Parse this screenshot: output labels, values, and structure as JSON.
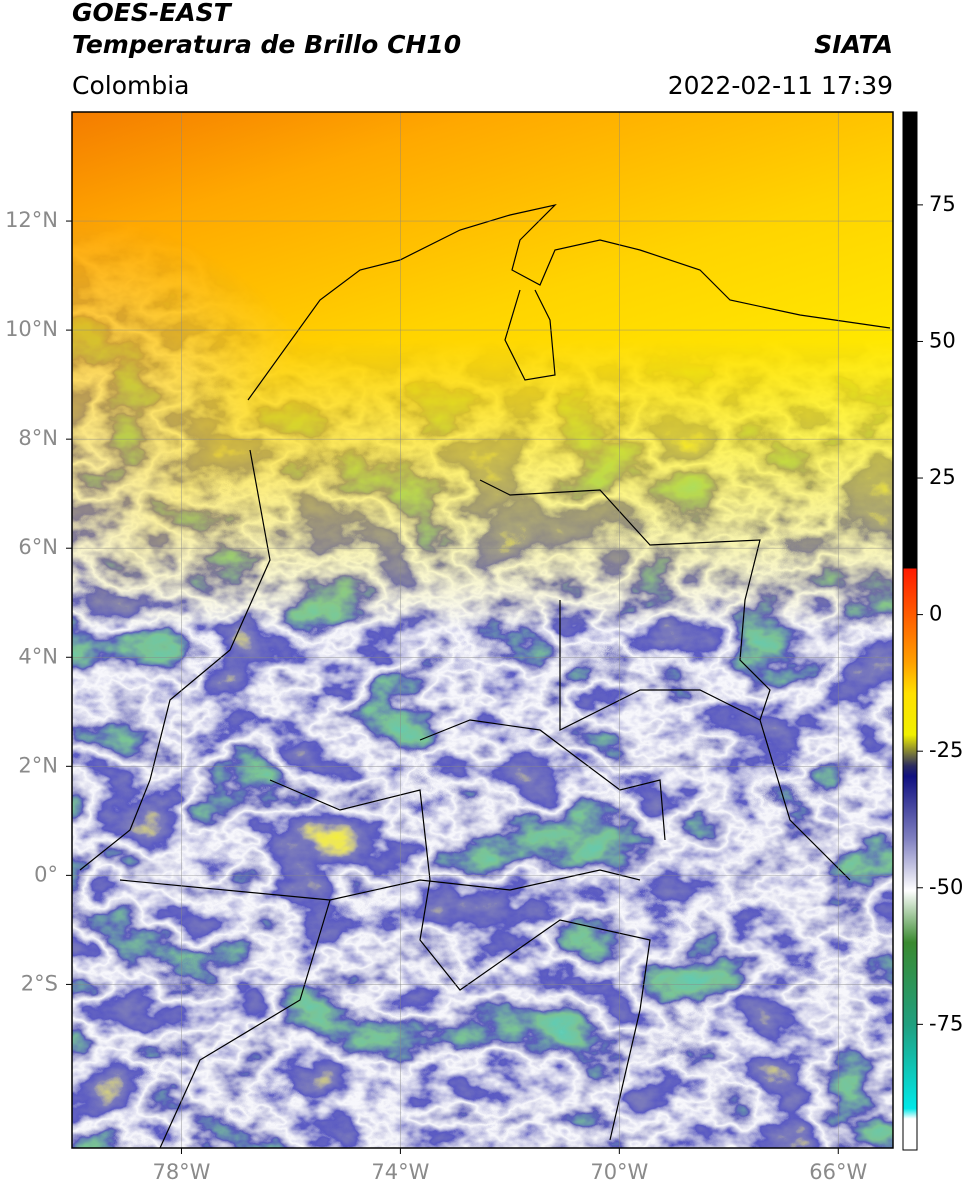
{
  "chart_data": {
    "type": "map",
    "title": [
      "GOES-EAST",
      "Temperatura de Brillo CH10"
    ],
    "subtitle": "Colombia",
    "source": "SIATA",
    "date": "2022-02-11 17:39",
    "xlim": [
      -80,
      -65
    ],
    "ylim": [
      -5,
      14
    ],
    "xticks": [
      {
        "value": -78,
        "label": "78°W"
      },
      {
        "value": -74,
        "label": "74°W"
      },
      {
        "value": -70,
        "label": "70°W"
      },
      {
        "value": -66,
        "label": "66°W"
      }
    ],
    "yticks": [
      {
        "value": 12,
        "label": "12°N"
      },
      {
        "value": 10,
        "label": "10°N"
      },
      {
        "value": 8,
        "label": "8°N"
      },
      {
        "value": 6,
        "label": "6°N"
      },
      {
        "value": 4,
        "label": "4°N"
      },
      {
        "value": 2,
        "label": "2°N"
      },
      {
        "value": 0,
        "label": "0°"
      },
      {
        "value": -2,
        "label": "2°S"
      }
    ],
    "grid": true,
    "colorbar": {
      "lim": [
        -98,
        92
      ],
      "ticks": [
        75,
        50,
        25,
        0,
        -25,
        -50,
        -75
      ]
    }
  }
}
